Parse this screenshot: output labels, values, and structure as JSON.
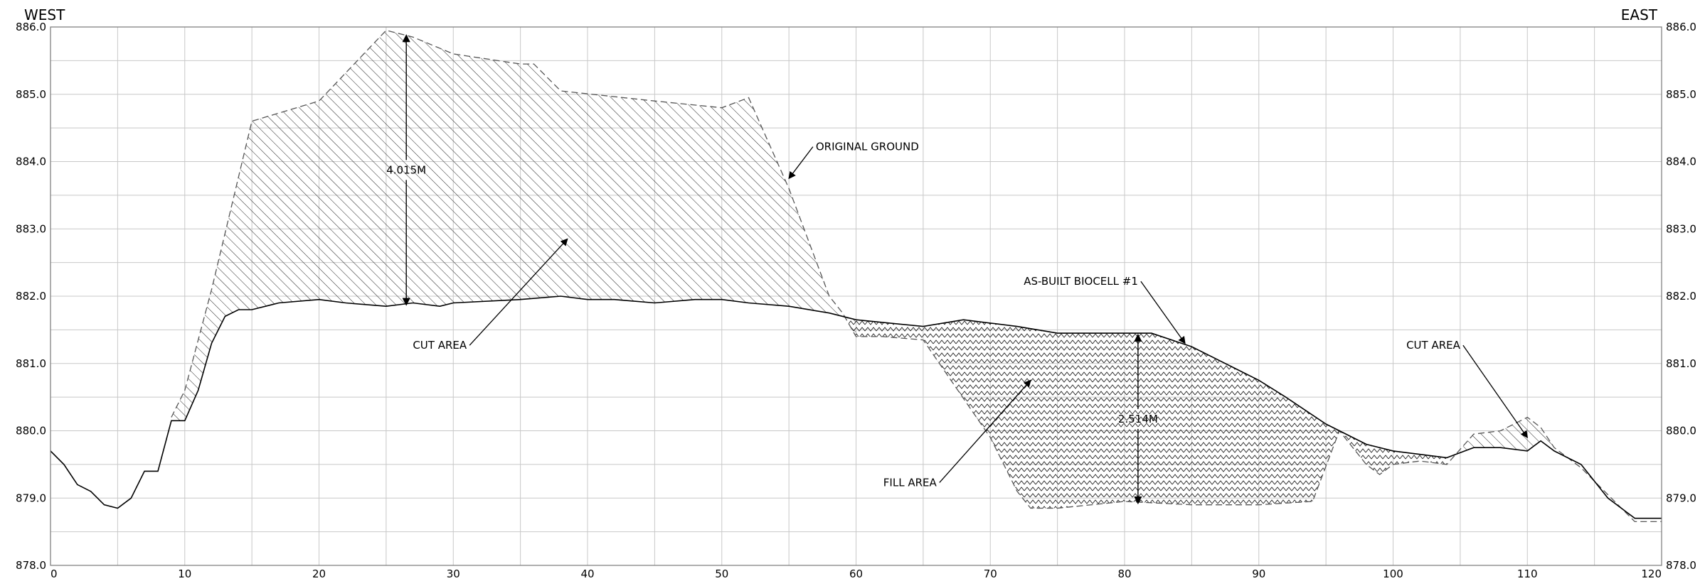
{
  "chart_data": {
    "type": "area",
    "orientation_labels": {
      "left": "WEST",
      "right": "EAST"
    },
    "xlim": [
      0,
      120
    ],
    "ylim": [
      878,
      886
    ],
    "x_ticks": [
      "0",
      "10",
      "20",
      "30",
      "40",
      "50",
      "60",
      "70",
      "80",
      "90",
      "100",
      "110",
      "120"
    ],
    "y_ticks": [
      "886.0",
      "885.0",
      "884.0",
      "883.0",
      "882.0",
      "881.0",
      "880.0",
      "879.0",
      "878.0"
    ],
    "grid": true,
    "series": [
      {
        "name": "ORIGINAL GROUND",
        "style": "dashed",
        "points": [
          [
            9,
            880.2
          ],
          [
            10,
            880.6
          ],
          [
            12,
            882.1
          ],
          [
            15,
            884.6
          ],
          [
            20,
            884.9
          ],
          [
            25,
            885.95
          ],
          [
            27,
            885.85
          ],
          [
            30,
            885.6
          ],
          [
            35,
            885.45
          ],
          [
            36,
            885.45
          ],
          [
            38,
            885.05
          ],
          [
            45,
            884.9
          ],
          [
            50,
            884.8
          ],
          [
            52,
            884.95
          ],
          [
            55,
            883.6
          ],
          [
            58,
            882.0
          ],
          [
            59,
            881.75
          ],
          [
            60,
            881.4
          ],
          [
            62,
            881.4
          ],
          [
            65,
            881.35
          ],
          [
            70,
            879.9
          ],
          [
            72,
            879.1
          ],
          [
            73,
            878.85
          ],
          [
            75,
            878.85
          ],
          [
            80,
            878.95
          ],
          [
            85,
            878.9
          ],
          [
            90,
            878.9
          ],
          [
            94,
            878.95
          ],
          [
            96,
            880.0
          ],
          [
            98,
            879.5
          ],
          [
            99,
            879.35
          ],
          [
            100,
            879.5
          ],
          [
            102,
            879.55
          ],
          [
            104,
            879.5
          ],
          [
            106,
            879.95
          ],
          [
            108,
            880.0
          ],
          [
            110,
            880.2
          ],
          [
            111,
            880.05
          ],
          [
            112,
            879.75
          ],
          [
            114,
            879.45
          ],
          [
            116,
            879.05
          ],
          [
            118,
            878.65
          ],
          [
            120,
            878.65
          ]
        ]
      },
      {
        "name": "AS-BUILT BIOCELL #1",
        "style": "solid",
        "points": [
          [
            0,
            879.7
          ],
          [
            1,
            879.5
          ],
          [
            2,
            879.2
          ],
          [
            3,
            879.1
          ],
          [
            4,
            878.9
          ],
          [
            5,
            878.85
          ],
          [
            6,
            879.0
          ],
          [
            7,
            879.4
          ],
          [
            8,
            879.4
          ],
          [
            9,
            880.15
          ],
          [
            10,
            880.15
          ],
          [
            11,
            880.6
          ],
          [
            12,
            881.3
          ],
          [
            13,
            881.7
          ],
          [
            14,
            881.8
          ],
          [
            15,
            881.8
          ],
          [
            17,
            881.9
          ],
          [
            20,
            881.95
          ],
          [
            22,
            881.9
          ],
          [
            25,
            881.85
          ],
          [
            27,
            881.9
          ],
          [
            29,
            881.85
          ],
          [
            30,
            881.9
          ],
          [
            35,
            881.95
          ],
          [
            38,
            882.0
          ],
          [
            40,
            881.95
          ],
          [
            42,
            881.95
          ],
          [
            45,
            881.9
          ],
          [
            48,
            881.95
          ],
          [
            50,
            881.95
          ],
          [
            52,
            881.9
          ],
          [
            55,
            881.85
          ],
          [
            58,
            881.75
          ],
          [
            60,
            881.65
          ],
          [
            65,
            881.55
          ],
          [
            68,
            881.65
          ],
          [
            70,
            881.6
          ],
          [
            72,
            881.55
          ],
          [
            75,
            881.45
          ],
          [
            78,
            881.45
          ],
          [
            82,
            881.45
          ],
          [
            85,
            881.25
          ],
          [
            88,
            880.95
          ],
          [
            90,
            880.75
          ],
          [
            92,
            880.5
          ],
          [
            95,
            880.1
          ],
          [
            98,
            879.8
          ],
          [
            100,
            879.7
          ],
          [
            102,
            879.65
          ],
          [
            104,
            879.6
          ],
          [
            106,
            879.75
          ],
          [
            108,
            879.75
          ],
          [
            110,
            879.7
          ],
          [
            111,
            879.85
          ],
          [
            112,
            879.7
          ],
          [
            114,
            879.5
          ],
          [
            116,
            879.0
          ],
          [
            118,
            878.7
          ],
          [
            119,
            878.7
          ],
          [
            120,
            878.7
          ]
        ]
      }
    ],
    "regions": [
      {
        "name": "CUT AREA",
        "hatch": "diagonal",
        "x_range": [
          9,
          60
        ]
      },
      {
        "name": "FILL AREA",
        "hatch": "zigzag",
        "x_range": [
          59,
          104
        ]
      },
      {
        "name": "CUT AREA",
        "hatch": "diagonal",
        "x_range": [
          105,
          112
        ]
      }
    ],
    "dimensions": [
      {
        "label": "4.015M",
        "x": 26.5,
        "y_top": 885.9,
        "y_bottom": 881.85
      },
      {
        "label": "2.514M",
        "x": 81.0,
        "y_top": 881.45,
        "y_bottom": 878.9
      }
    ],
    "annotations": [
      {
        "text": "ORIGINAL GROUND",
        "label_x": 57,
        "label_y": 884.22,
        "target_x": 55,
        "target_y": 883.75
      },
      {
        "text": "CUT AREA",
        "label_x": 31,
        "label_y": 881.27,
        "target_x": 38.5,
        "target_y": 882.85
      },
      {
        "text": "AS-BUILT BIOCELL #1",
        "label_x": 81,
        "label_y": 882.22,
        "target_x": 84.5,
        "target_y": 881.3
      },
      {
        "text": "FILL AREA",
        "label_x": 66,
        "label_y": 879.23,
        "target_x": 73,
        "target_y": 880.75
      },
      {
        "text": "CUT AREA",
        "label_x": 105,
        "label_y": 881.27,
        "target_x": 110,
        "target_y": 879.9
      }
    ]
  }
}
